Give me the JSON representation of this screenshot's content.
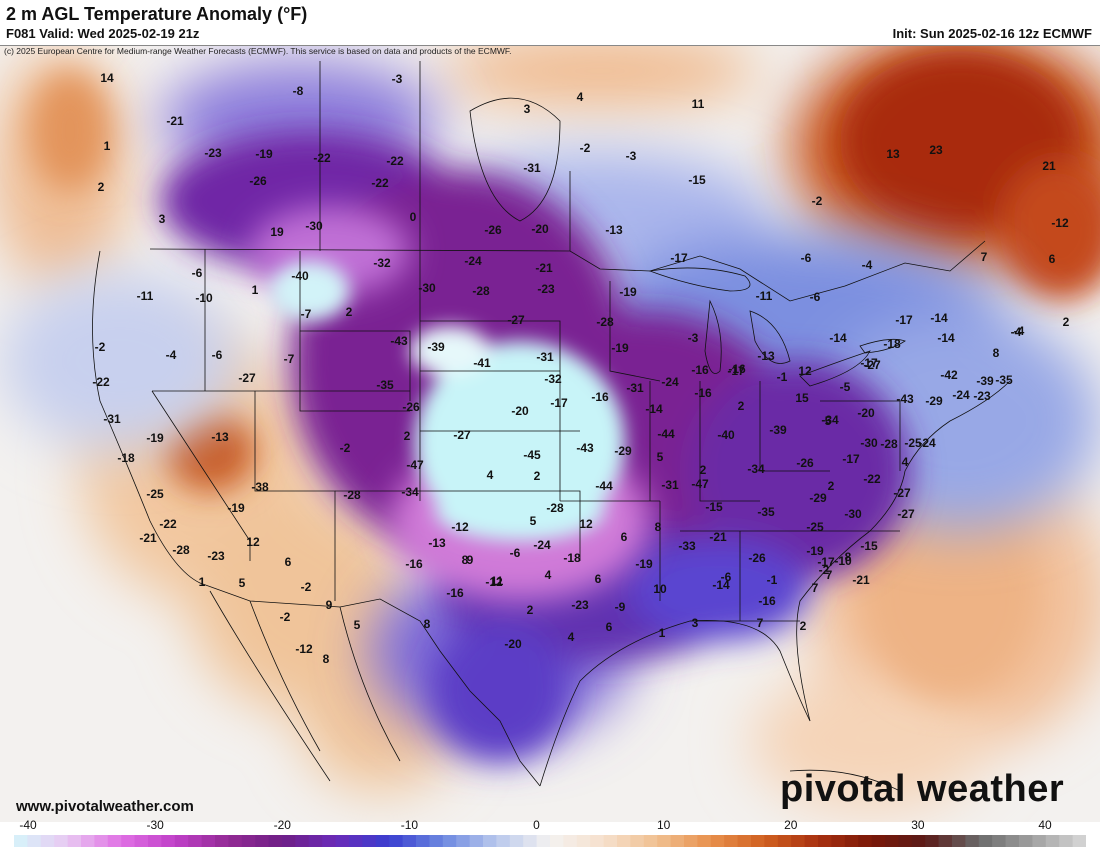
{
  "header": {
    "title": "2 m AGL Temperature Anomaly (°F)",
    "valid": "F081 Valid: Wed 2025-02-19 21z",
    "init": "Init: Sun 2025-02-16 12z ECMWF",
    "copyright": "(c) 2025 European Centre for Medium-range Weather Forecasts (ECMWF). This service is based on data and products of the ECMWF."
  },
  "footer": {
    "website": "www.pivotalweather.com",
    "brand": "pivotal weather"
  },
  "colorbar": {
    "ticks": [
      "-40",
      "-30",
      "-20",
      "-10",
      "0",
      "10",
      "20",
      "30",
      "40"
    ],
    "min": -40,
    "max": 40
  },
  "colors": {
    "cold_extreme": "#c8f4f8",
    "cold_violet": "#7a1e8c",
    "cold_blue": "#3b4fd6",
    "near_zero": "#f4f2f0",
    "warm_orange": "#e8995c",
    "warm_red": "#b23a1a"
  },
  "map_labels": [
    "14",
    "-21",
    "-3",
    "-8",
    "3",
    "4",
    "11",
    "1",
    "-23",
    "-19",
    "-22",
    "-22",
    "-2",
    "-3",
    "13",
    "23",
    "21",
    "2",
    "-26",
    "-22",
    "-31",
    "-15",
    "-2",
    "3",
    "0",
    "-26",
    "-20",
    "-13",
    "-12",
    "19",
    "-30",
    "-24",
    "-21",
    "-19",
    "-17",
    "-6",
    "-4",
    "7",
    "6",
    "-6",
    "-10",
    "1",
    "-40",
    "-32",
    "-30",
    "-28",
    "-23",
    "-11",
    "-6",
    "-11",
    "-7",
    "2",
    "-43",
    "-27",
    "-28",
    "-3",
    "-16",
    "-17",
    "-14",
    "-4",
    "2",
    "-2",
    "-4",
    "-6",
    "-7",
    "-27",
    "-39",
    "-41",
    "-31",
    "-19",
    "-13",
    "-14",
    "-17",
    "-18",
    "-14",
    "8",
    "-4",
    "-22",
    "-35",
    "-32",
    "-31",
    "-24",
    "-16",
    "-17",
    "-1",
    "12",
    "-5",
    "-27",
    "-42",
    "-39",
    "-35",
    "-31",
    "-26",
    "-20",
    "-17",
    "-16",
    "-14",
    "-16",
    "2",
    "15",
    "5",
    "-20",
    "-43",
    "-29",
    "-24",
    "-23",
    "-19",
    "-13",
    "-2",
    "2",
    "-27",
    "-44",
    "-40",
    "-39",
    "-34",
    "-30",
    "-28",
    "-25",
    "-24",
    "-18",
    "-47",
    "-45",
    "-43",
    "-29",
    "5",
    "2",
    "-34",
    "-26",
    "-17",
    "4",
    "4",
    "2",
    "-44",
    "-31",
    "-47",
    "-38",
    "-28",
    "-25",
    "-29",
    "2",
    "-22",
    "-27",
    "-34",
    "-19",
    "-28",
    "-12",
    "5",
    "12",
    "-15",
    "-35",
    "-30",
    "-27",
    "-22",
    "-13",
    "-24",
    "6",
    "8",
    "-33",
    "-21",
    "-25",
    "-15",
    "-21",
    "12",
    "-28",
    "-23",
    "-16",
    "-6",
    "-18",
    "8",
    "9",
    "-26",
    "-19",
    "-17",
    "-10",
    "6",
    "-2",
    "-16",
    "-12",
    "4",
    "6",
    "-19",
    "-6",
    "-1",
    "-2",
    "7",
    "8",
    "-21",
    "1",
    "5",
    "11",
    "2",
    "-23",
    "-9",
    "10",
    "-14",
    "-16",
    "7",
    "9",
    "-2",
    "5",
    "8",
    "-20",
    "4",
    "6",
    "1",
    "3",
    "7",
    "2",
    "-12",
    "8"
  ]
}
